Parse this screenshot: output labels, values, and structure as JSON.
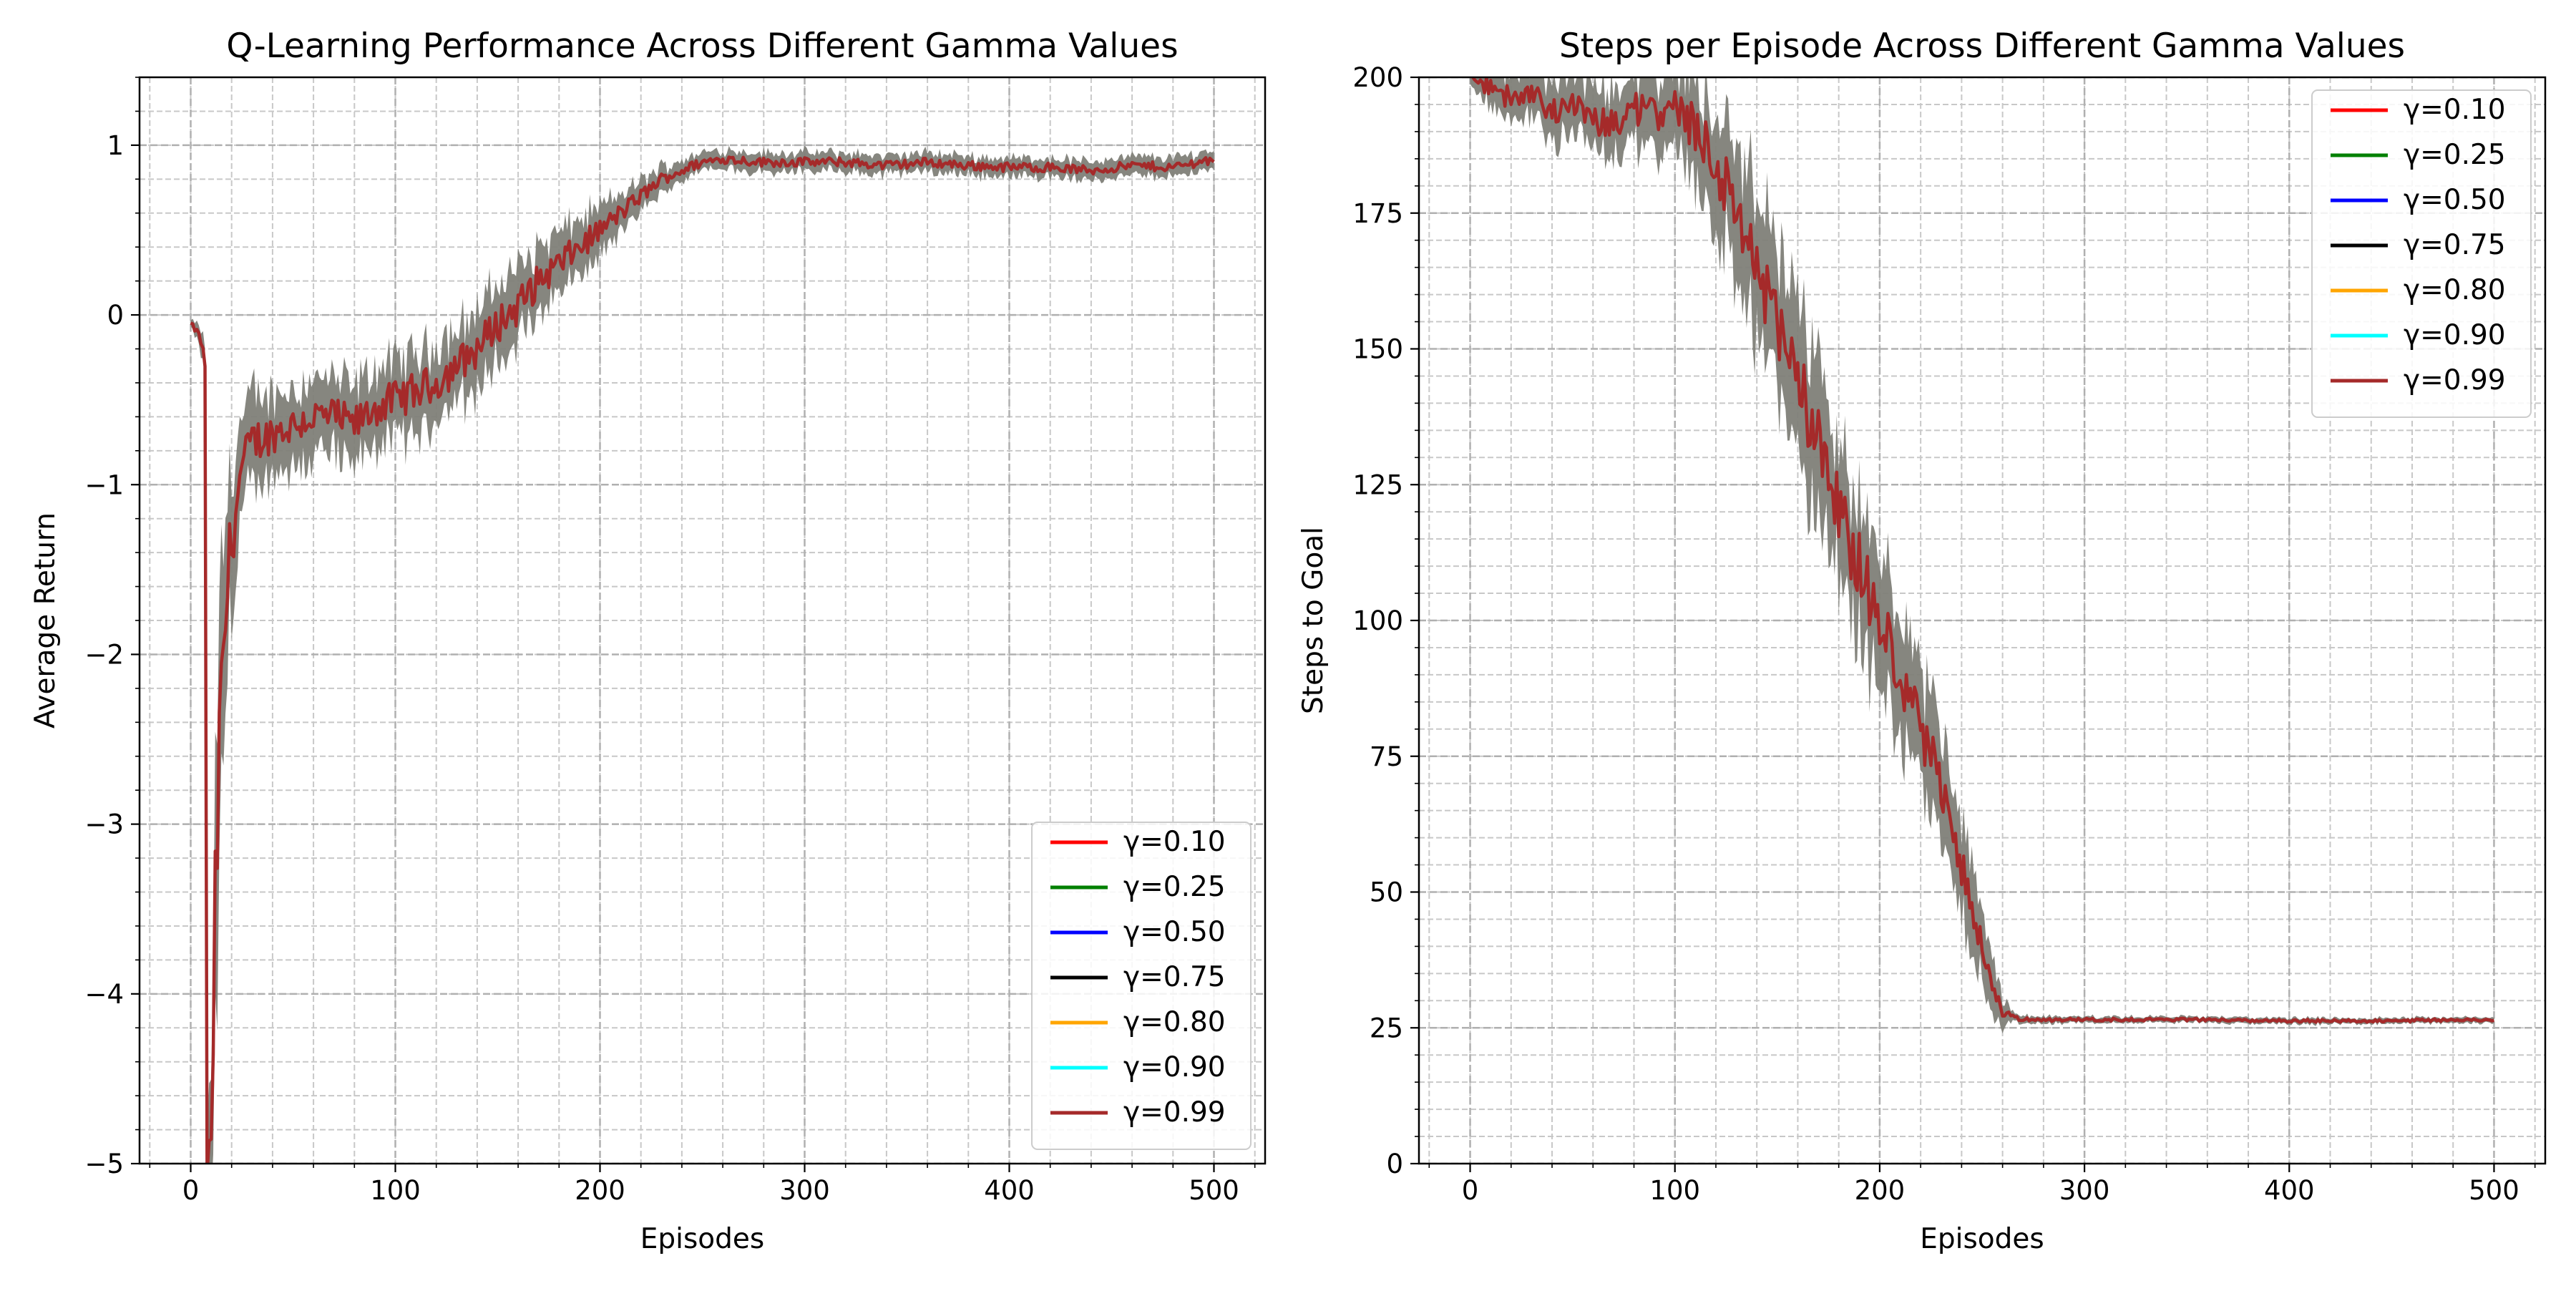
{
  "chart_data": [
    {
      "type": "line",
      "title": "Q-Learning Performance Across Different Gamma Values",
      "xlabel": "Episodes",
      "ylabel": "Average Return",
      "xlim": [
        -25,
        525
      ],
      "ylim": [
        -5,
        1.4
      ],
      "xticks": [
        0,
        100,
        200,
        300,
        400,
        500
      ],
      "xtick_labels": [
        "0",
        "100",
        "200",
        "300",
        "400",
        "500"
      ],
      "yticks": [
        1,
        0,
        -1,
        -2,
        -3,
        -4,
        -5
      ],
      "ytick_labels": [
        "1",
        "0",
        "−1",
        "−2",
        "−3",
        "−4",
        "−5"
      ],
      "grid": true,
      "legend_position": "lower-right",
      "series": [
        {
          "name": "γ=0.10",
          "color": "#ff0000"
        },
        {
          "name": "γ=0.25",
          "color": "#008000"
        },
        {
          "name": "γ=0.50",
          "color": "#0000ff"
        },
        {
          "name": "γ=0.75",
          "color": "#000000"
        },
        {
          "name": "γ=0.80",
          "color": "#ffa500"
        },
        {
          "name": "γ=0.90",
          "color": "#00ffff"
        },
        {
          "name": "γ=0.99",
          "color": "#a52a2a"
        }
      ],
      "mean_curve": {
        "x": [
          0,
          3,
          5,
          7,
          8,
          10,
          12,
          14,
          16,
          18,
          20,
          25,
          30,
          40,
          50,
          60,
          70,
          80,
          90,
          100,
          110,
          120,
          130,
          140,
          150,
          160,
          170,
          180,
          190,
          200,
          210,
          220,
          230,
          240,
          250,
          260,
          280,
          300,
          320,
          340,
          360,
          380,
          400,
          420,
          440,
          460,
          480,
          500
        ],
        "y": [
          -0.05,
          -0.1,
          -0.15,
          -0.3,
          -5.0,
          -5.0,
          -3.5,
          -2.6,
          -2.0,
          -1.6,
          -1.3,
          -0.9,
          -0.75,
          -0.7,
          -0.65,
          -0.6,
          -0.6,
          -0.65,
          -0.55,
          -0.5,
          -0.45,
          -0.4,
          -0.3,
          -0.2,
          -0.05,
          0.05,
          0.2,
          0.3,
          0.4,
          0.5,
          0.6,
          0.7,
          0.8,
          0.85,
          0.9,
          0.92,
          0.9,
          0.9,
          0.9,
          0.88,
          0.9,
          0.88,
          0.87,
          0.87,
          0.85,
          0.88,
          0.87,
          0.92
        ],
        "band": [
          0.02,
          0.05,
          0.08,
          0.1,
          0.3,
          0.5,
          0.8,
          0.9,
          0.7,
          0.6,
          0.5,
          0.3,
          0.3,
          0.25,
          0.25,
          0.25,
          0.25,
          0.25,
          0.25,
          0.25,
          0.25,
          0.25,
          0.25,
          0.25,
          0.25,
          0.25,
          0.22,
          0.2,
          0.18,
          0.15,
          0.12,
          0.1,
          0.08,
          0.07,
          0.06,
          0.06,
          0.06,
          0.06,
          0.06,
          0.06,
          0.06,
          0.06,
          0.06,
          0.06,
          0.06,
          0.06,
          0.06,
          0.06
        ]
      }
    },
    {
      "type": "line",
      "title": "Steps per Episode Across Different Gamma Values",
      "xlabel": "Episodes",
      "ylabel": "Steps to Goal",
      "xlim": [
        -25,
        525
      ],
      "ylim": [
        0,
        200
      ],
      "xticks": [
        0,
        100,
        200,
        300,
        400,
        500
      ],
      "xtick_labels": [
        "0",
        "100",
        "200",
        "300",
        "400",
        "500"
      ],
      "yticks": [
        200,
        175,
        150,
        125,
        100,
        75,
        50,
        25,
        0
      ],
      "ytick_labels": [
        "200",
        "175",
        "150",
        "125",
        "100",
        "75",
        "50",
        "25",
        "0"
      ],
      "grid": true,
      "legend_position": "upper-right",
      "series": [
        {
          "name": "γ=0.10",
          "color": "#ff0000"
        },
        {
          "name": "γ=0.25",
          "color": "#008000"
        },
        {
          "name": "γ=0.50",
          "color": "#0000ff"
        },
        {
          "name": "γ=0.75",
          "color": "#000000"
        },
        {
          "name": "γ=0.80",
          "color": "#ffa500"
        },
        {
          "name": "γ=0.90",
          "color": "#00ffff"
        },
        {
          "name": "γ=0.99",
          "color": "#a52a2a"
        }
      ],
      "mean_curve": {
        "x": [
          0,
          10,
          20,
          30,
          40,
          50,
          60,
          70,
          80,
          90,
          100,
          110,
          120,
          130,
          140,
          150,
          160,
          170,
          180,
          190,
          200,
          210,
          220,
          230,
          240,
          250,
          255,
          260,
          265,
          270,
          300,
          350,
          400,
          450,
          500
        ],
        "y": [
          200,
          198,
          196,
          197,
          193,
          195,
          192,
          191,
          194,
          193,
          196,
          190,
          185,
          175,
          165,
          155,
          145,
          132,
          120,
          110,
          100,
          90,
          80,
          70,
          55,
          40,
          32,
          28,
          27,
          26.5,
          26.5,
          26.5,
          26.3,
          26.3,
          26.5
        ],
        "band": [
          2,
          4,
          5,
          5,
          6,
          6,
          6,
          7,
          7,
          7,
          8,
          10,
          12,
          14,
          15,
          15,
          15,
          15,
          15,
          14,
          13,
          12,
          12,
          11,
          10,
          8,
          6,
          3,
          1,
          0.8,
          0.6,
          0.6,
          0.6,
          0.6,
          0.6
        ]
      }
    }
  ]
}
